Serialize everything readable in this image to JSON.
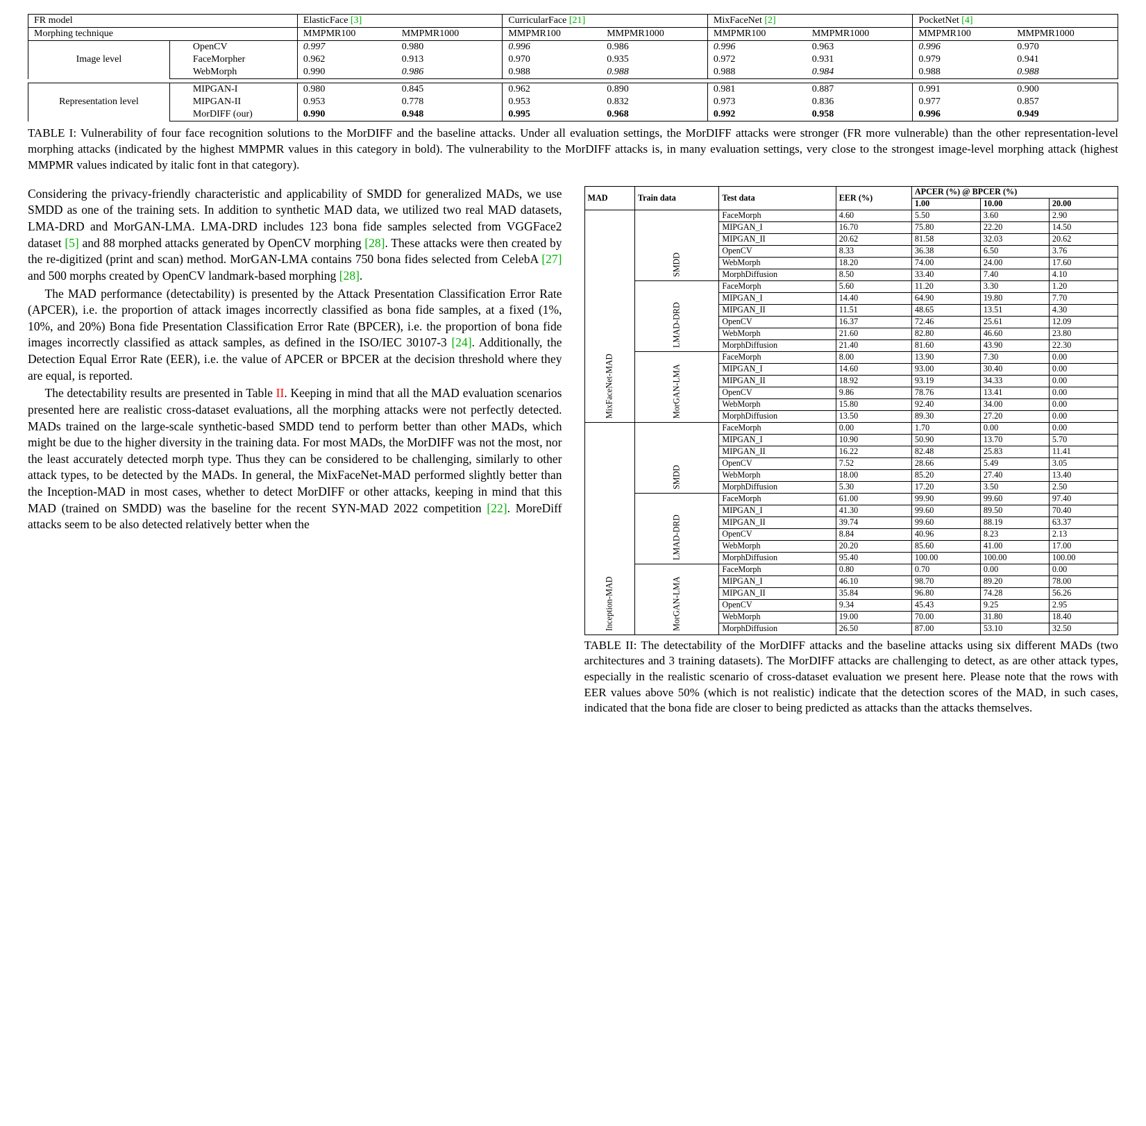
{
  "table1": {
    "id": "TABLE I",
    "hdr_fr": "FR model",
    "hdr_morph": "Morphing technique",
    "models": [
      "ElasticFace [3]",
      "CurricularFace [21]",
      "MixFaceNet [2]",
      "PocketNet [4]"
    ],
    "metrics": [
      "MMPMR100",
      "MMPMR1000"
    ],
    "cite_colors": [
      "#00b300",
      "#00b300",
      "#00b300",
      "#00b300"
    ],
    "groups": [
      {
        "label": "Image level",
        "rows": [
          {
            "name": "OpenCV",
            "vals": [
              "0.997",
              "0.980",
              "0.996",
              "0.986",
              "0.996",
              "0.963",
              "0.996",
              "0.970"
            ],
            "styles": [
              "italic",
              "",
              "italic",
              "",
              "italic",
              "",
              "italic",
              ""
            ]
          },
          {
            "name": "FaceMorpher",
            "vals": [
              "0.962",
              "0.913",
              "0.970",
              "0.935",
              "0.972",
              "0.931",
              "0.979",
              "0.941"
            ],
            "styles": [
              "",
              "",
              "",
              "",
              "",
              "",
              "",
              ""
            ]
          },
          {
            "name": "WebMorph",
            "vals": [
              "0.990",
              "0.986",
              "0.988",
              "0.988",
              "0.988",
              "0.984",
              "0.988",
              "0.988"
            ],
            "styles": [
              "",
              "italic",
              "",
              "italic",
              "",
              "italic",
              "",
              "italic"
            ]
          }
        ]
      },
      {
        "label": "Representation level",
        "rows": [
          {
            "name": "MIPGAN-I",
            "vals": [
              "0.980",
              "0.845",
              "0.962",
              "0.890",
              "0.981",
              "0.887",
              "0.991",
              "0.900"
            ],
            "styles": [
              "",
              "",
              "",
              "",
              "",
              "",
              "",
              ""
            ]
          },
          {
            "name": "MIPGAN-II",
            "vals": [
              "0.953",
              "0.778",
              "0.953",
              "0.832",
              "0.973",
              "0.836",
              "0.977",
              "0.857"
            ],
            "styles": [
              "",
              "",
              "",
              "",
              "",
              "",
              "",
              ""
            ]
          },
          {
            "name": "MorDIFF (our)",
            "vals": [
              "0.990",
              "0.948",
              "0.995",
              "0.968",
              "0.992",
              "0.958",
              "0.996",
              "0.949"
            ],
            "styles": [
              "bold",
              "bold",
              "bold",
              "bold",
              "bold",
              "bold",
              "bold",
              "bold"
            ]
          }
        ]
      }
    ],
    "caption": ": Vulnerability of four face recognition solutions to the MorDIFF and the baseline attacks. Under all evaluation settings, the MorDIFF attacks were stronger (FR more vulnerable) than the other representation-level morphing attacks (indicated by the highest MMPMR values in this category in bold). The vulnerability to the MorDIFF attacks is, in many evaluation settings, very close to the strongest image-level morphing attack (highest MMPMR values indicated by italic font in that category)."
  },
  "left_col": {
    "p1": "Considering the privacy-friendly characteristic and applicability of SMDD for generalized MADs, we use SMDD as one of the training sets. In addition to synthetic MAD data, we utilized two real MAD datasets, LMA-DRD and MorGAN-LMA. LMA-DRD includes 123 bona fide samples selected from VGGFace2 dataset ",
    "c1": "[5]",
    "p1b": " and 88 morphed attacks generated by OpenCV morphing ",
    "c2": "[28]",
    "p1c": ". These attacks were then created by the re-digitized (print and scan) method. MorGAN-LMA contains 750 bona fides selected from CelebA ",
    "c3": "[27]",
    "p1d": " and 500 morphs created by OpenCV landmark-based morphing ",
    "c4": "[28]",
    "p1e": ".",
    "p2a": "The MAD performance (detectability) is presented by the Attack Presentation Classification Error Rate (APCER), i.e. the proportion of attack images incorrectly classified as bona fide samples, at a fixed (1%, 10%, and 20%) Bona fide Presentation Classification Error Rate (BPCER), i.e. the proportion of bona fide images incorrectly classified as attack samples, as defined in the ISO/IEC 30107-3 ",
    "c5": "[24]",
    "p2b": ". Additionally, the Detection Equal Error Rate (EER), i.e. the value of APCER or BPCER at the decision threshold where they are equal, is reported.",
    "p3a": "The detectability results are presented in Table ",
    "tref": "II",
    "p3b": ". Keeping in mind that all the MAD evaluation scenarios presented here are realistic cross-dataset evaluations, all the morphing attacks were not perfectly detected. MADs trained on the large-scale synthetic-based SMDD tend to perform better than other MADs, which might be due to the higher diversity in the training data. For most MADs, the MorDIFF was not the most, nor the least accurately detected morph type. Thus they can be considered to be challenging, similarly to other attack types, to be detected by the MADs. In general, the MixFaceNet-MAD performed slightly better than the Inception-MAD in most cases, whether to detect MorDIFF or other attacks, keeping in mind that this MAD (trained on SMDD) was the baseline for the recent SYN-MAD 2022 competition ",
    "c6": "[22]",
    "p3c": ". MoreDiff attacks seem to be also detected relatively better when the"
  },
  "table2": {
    "id": "TABLE II",
    "hdr": {
      "mad": "MAD",
      "train": "Train data",
      "test": "Test data",
      "eer": "EER (%)",
      "apcer": "APCER (%) @ BPCER (%)",
      "a1": "1.00",
      "a10": "10.00",
      "a20": "20.00"
    },
    "mads": [
      {
        "name": "MixFaceNet-MAD",
        "trains": [
          {
            "name": "SMDD",
            "rows": [
              {
                "t": "FaceMorph",
                "v": [
                  "4.60",
                  "5.50",
                  "3.60",
                  "2.90"
                ]
              },
              {
                "t": "MIPGAN_I",
                "v": [
                  "16.70",
                  "75.80",
                  "22.20",
                  "14.50"
                ]
              },
              {
                "t": "MIPGAN_II",
                "v": [
                  "20.62",
                  "81.58",
                  "32.03",
                  "20.62"
                ]
              },
              {
                "t": "OpenCV",
                "v": [
                  "8.33",
                  "36.38",
                  "6.50",
                  "3.76"
                ]
              },
              {
                "t": "WebMorph",
                "v": [
                  "18.20",
                  "74.00",
                  "24.00",
                  "17.60"
                ]
              },
              {
                "t": "MorphDiffusion",
                "v": [
                  "8.50",
                  "33.40",
                  "7.40",
                  "4.10"
                ]
              }
            ]
          },
          {
            "name": "LMAD-DRD",
            "rows": [
              {
                "t": "FaceMorph",
                "v": [
                  "5.60",
                  "11.20",
                  "3.30",
                  "1.20"
                ]
              },
              {
                "t": "MIPGAN_I",
                "v": [
                  "14.40",
                  "64.90",
                  "19.80",
                  "7.70"
                ]
              },
              {
                "t": "MIPGAN_II",
                "v": [
                  "11.51",
                  "48.65",
                  "13.51",
                  "4.30"
                ]
              },
              {
                "t": "OpenCV",
                "v": [
                  "16.37",
                  "72.46",
                  "25.61",
                  "12.09"
                ]
              },
              {
                "t": "WebMorph",
                "v": [
                  "21.60",
                  "82.80",
                  "46.60",
                  "23.80"
                ]
              },
              {
                "t": "MorphDiffusion",
                "v": [
                  "21.40",
                  "81.60",
                  "43.90",
                  "22.30"
                ]
              }
            ]
          },
          {
            "name": "MorGAN-LMA",
            "rows": [
              {
                "t": "FaceMorph",
                "v": [
                  "8.00",
                  "13.90",
                  "7.30",
                  "0.00"
                ]
              },
              {
                "t": "MIPGAN_I",
                "v": [
                  "14.60",
                  "93.00",
                  "30.40",
                  "0.00"
                ]
              },
              {
                "t": "MIPGAN_II",
                "v": [
                  "18.92",
                  "93.19",
                  "34.33",
                  "0.00"
                ]
              },
              {
                "t": "OpenCV",
                "v": [
                  "9.86",
                  "78.76",
                  "13.41",
                  "0.00"
                ]
              },
              {
                "t": "WebMorph",
                "v": [
                  "15.80",
                  "92.40",
                  "34.00",
                  "0.00"
                ]
              },
              {
                "t": "MorphDiffusion",
                "v": [
                  "13.50",
                  "89.30",
                  "27.20",
                  "0.00"
                ]
              }
            ]
          }
        ]
      },
      {
        "name": "Inception-MAD",
        "trains": [
          {
            "name": "SMDD",
            "rows": [
              {
                "t": "FaceMorph",
                "v": [
                  "0.00",
                  "1.70",
                  "0.00",
                  "0.00"
                ]
              },
              {
                "t": "MIPGAN_I",
                "v": [
                  "10.90",
                  "50.90",
                  "13.70",
                  "5.70"
                ]
              },
              {
                "t": "MIPGAN_II",
                "v": [
                  "16.22",
                  "82.48",
                  "25.83",
                  "11.41"
                ]
              },
              {
                "t": "OpenCV",
                "v": [
                  "7.52",
                  "28.66",
                  "5.49",
                  "3.05"
                ]
              },
              {
                "t": "WebMorph",
                "v": [
                  "18.00",
                  "85.20",
                  "27.40",
                  "13.40"
                ]
              },
              {
                "t": "MorphDiffusion",
                "v": [
                  "5.30",
                  "17.20",
                  "3.50",
                  "2.50"
                ]
              }
            ]
          },
          {
            "name": "LMAD-DRD",
            "rows": [
              {
                "t": "FaceMorph",
                "v": [
                  "61.00",
                  "99.90",
                  "99.60",
                  "97.40"
                ]
              },
              {
                "t": "MIPGAN_I",
                "v": [
                  "41.30",
                  "99.60",
                  "89.50",
                  "70.40"
                ]
              },
              {
                "t": "MIPGAN_II",
                "v": [
                  "39.74",
                  "99.60",
                  "88.19",
                  "63.37"
                ]
              },
              {
                "t": "OpenCV",
                "v": [
                  "8.84",
                  "40.96",
                  "8.23",
                  "2.13"
                ]
              },
              {
                "t": "WebMorph",
                "v": [
                  "20.20",
                  "85.60",
                  "41.00",
                  "17.00"
                ]
              },
              {
                "t": "MorphDiffusion",
                "v": [
                  "95.40",
                  "100.00",
                  "100.00",
                  "100.00"
                ]
              }
            ]
          },
          {
            "name": "MorGAN-LMA",
            "rows": [
              {
                "t": "FaceMorph",
                "v": [
                  "0.80",
                  "0.70",
                  "0.00",
                  "0.00"
                ]
              },
              {
                "t": "MIPGAN_I",
                "v": [
                  "46.10",
                  "98.70",
                  "89.20",
                  "78.00"
                ]
              },
              {
                "t": "MIPGAN_II",
                "v": [
                  "35.84",
                  "96.80",
                  "74.28",
                  "56.26"
                ]
              },
              {
                "t": "OpenCV",
                "v": [
                  "9.34",
                  "45.43",
                  "9.25",
                  "2.95"
                ]
              },
              {
                "t": "WebMorph",
                "v": [
                  "19.00",
                  "70.00",
                  "31.80",
                  "18.40"
                ]
              },
              {
                "t": "MorphDiffusion",
                "v": [
                  "26.50",
                  "87.00",
                  "53.10",
                  "32.50"
                ]
              }
            ]
          }
        ]
      }
    ],
    "caption": ": The detectability of the MorDIFF attacks and the baseline attacks using six different MADs (two architectures and 3 training datasets). The MorDIFF attacks are challenging to detect, as are other attack types, especially in the realistic scenario of cross-dataset evaluation we present here. Please note that the rows with EER values above 50% (which is not realistic) indicate that the detection scores of the MAD, in such cases, indicated that the bona fide are closer to being predicted as attacks than the attacks themselves."
  }
}
